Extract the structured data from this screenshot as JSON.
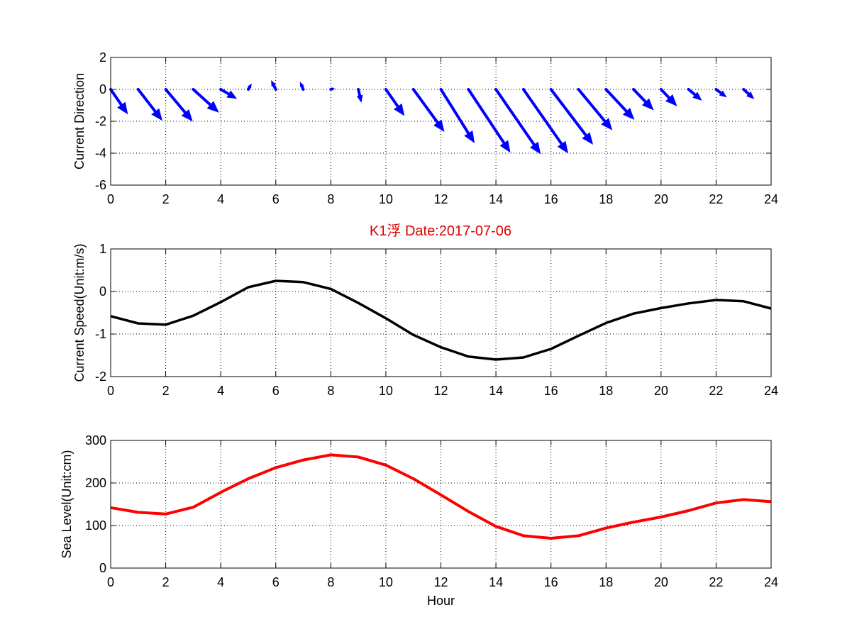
{
  "title": "K1浮   Date:2017-07-06",
  "colors": {
    "arrows": "#0000ff",
    "speed": "#000000",
    "level": "#ff0000",
    "title": "#e00000"
  },
  "chart_data": [
    {
      "type": "quiver",
      "ylabel": "Current Direction",
      "xlim": [
        0,
        24
      ],
      "ylim": [
        -6,
        2
      ],
      "xticks": [
        0,
        2,
        4,
        6,
        8,
        10,
        12,
        14,
        16,
        18,
        20,
        22,
        24
      ],
      "yticks": [
        -6,
        -4,
        -2,
        0,
        2
      ],
      "grid": true,
      "arrows": [
        {
          "x": 0,
          "u": 0.6,
          "v": -1.5
        },
        {
          "x": 1,
          "u": 0.85,
          "v": -1.9
        },
        {
          "x": 2,
          "u": 0.95,
          "v": -1.95
        },
        {
          "x": 3,
          "u": 0.9,
          "v": -1.4
        },
        {
          "x": 4,
          "u": 0.55,
          "v": -0.55
        },
        {
          "x": 5,
          "u": 0.1,
          "v": 0.3
        },
        {
          "x": 6,
          "u": -0.15,
          "v": 0.5
        },
        {
          "x": 7,
          "u": -0.1,
          "v": 0.4
        },
        {
          "x": 8,
          "u": 0.1,
          "v": 0.05
        },
        {
          "x": 9,
          "u": 0.1,
          "v": -0.75
        },
        {
          "x": 10,
          "u": 0.65,
          "v": -1.6
        },
        {
          "x": 11,
          "u": 1.1,
          "v": -2.6
        },
        {
          "x": 12,
          "u": 1.2,
          "v": -3.3
        },
        {
          "x": 13,
          "u": 1.5,
          "v": -3.9
        },
        {
          "x": 14,
          "u": 1.6,
          "v": -4.0
        },
        {
          "x": 15,
          "u": 1.6,
          "v": -3.95
        },
        {
          "x": 16,
          "u": 1.5,
          "v": -3.4
        },
        {
          "x": 17,
          "u": 1.2,
          "v": -2.5
        },
        {
          "x": 18,
          "u": 1.0,
          "v": -1.85
        },
        {
          "x": 19,
          "u": 0.7,
          "v": -1.25
        },
        {
          "x": 20,
          "u": 0.55,
          "v": -1.0
        },
        {
          "x": 21,
          "u": 0.45,
          "v": -0.65
        },
        {
          "x": 22,
          "u": 0.35,
          "v": -0.45
        },
        {
          "x": 23,
          "u": 0.35,
          "v": -0.55
        }
      ]
    },
    {
      "type": "line",
      "ylabel": "Current Speed(Unit:m/s)",
      "xlim": [
        0,
        24
      ],
      "ylim": [
        -2,
        1
      ],
      "xticks": [
        0,
        2,
        4,
        6,
        8,
        10,
        12,
        14,
        16,
        18,
        20,
        22,
        24
      ],
      "yticks": [
        -2,
        -1,
        0,
        1
      ],
      "grid": true,
      "x": [
        0,
        1,
        2,
        3,
        4,
        5,
        6,
        7,
        8,
        9,
        10,
        11,
        12,
        13,
        14,
        15,
        16,
        17,
        18,
        19,
        20,
        21,
        22,
        23,
        24
      ],
      "y": [
        -0.58,
        -0.75,
        -0.78,
        -0.57,
        -0.25,
        0.1,
        0.25,
        0.22,
        0.06,
        -0.27,
        -0.63,
        -1.02,
        -1.31,
        -1.53,
        -1.6,
        -1.55,
        -1.35,
        -1.04,
        -0.74,
        -0.52,
        -0.39,
        -0.28,
        -0.2,
        -0.23,
        -0.4
      ]
    },
    {
      "type": "line",
      "ylabel": "Sea Level(Unit:cm)",
      "xlabel": "Hour",
      "xlim": [
        0,
        24
      ],
      "ylim": [
        0,
        300
      ],
      "xticks": [
        0,
        2,
        4,
        6,
        8,
        10,
        12,
        14,
        16,
        18,
        20,
        22,
        24
      ],
      "yticks": [
        0,
        100,
        200,
        300
      ],
      "grid": true,
      "x": [
        0,
        1,
        2,
        3,
        4,
        5,
        6,
        7,
        8,
        9,
        10,
        11,
        12,
        13,
        14,
        15,
        16,
        17,
        18,
        19,
        20,
        21,
        22,
        23,
        24
      ],
      "y": [
        142,
        131,
        127,
        143,
        178,
        210,
        236,
        254,
        266,
        261,
        242,
        210,
        172,
        133,
        98,
        76,
        70,
        76,
        94,
        108,
        120,
        135,
        153,
        161,
        156
      ]
    }
  ]
}
